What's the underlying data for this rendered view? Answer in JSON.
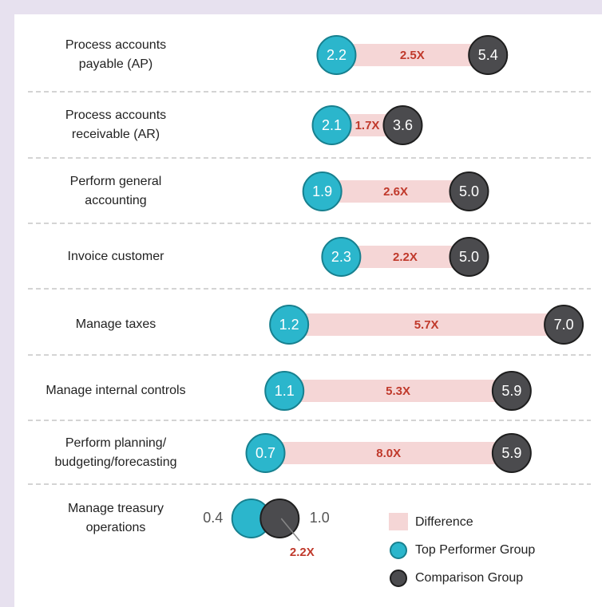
{
  "chart_data": {
    "type": "dumbbell",
    "categories": [
      [
        "Process accounts",
        "payable (AP)"
      ],
      [
        "Process accounts",
        "receivable (AR)"
      ],
      [
        "Perform general",
        "accounting"
      ],
      [
        "Invoice customer"
      ],
      [
        "Manage taxes"
      ],
      [
        "Manage internal controls"
      ],
      [
        "Perform planning/",
        "budgeting/forecasting"
      ],
      [
        "Manage treasury",
        "operations"
      ]
    ],
    "series": [
      {
        "name": "Top Performer Group",
        "color": "#2bb6cc",
        "stroke": "#17808f",
        "values": [
          2.2,
          2.1,
          1.9,
          2.3,
          1.2,
          1.1,
          0.7,
          0.4
        ],
        "value_labels": [
          "2.2",
          "2.1",
          "1.9",
          "2.3",
          "1.2",
          "1.1",
          "0.7",
          "0.4"
        ]
      },
      {
        "name": "Comparison Group",
        "color": "#4b4b4e",
        "stroke": "#1e1e1e",
        "values": [
          5.4,
          3.6,
          5.0,
          5.0,
          7.0,
          5.9,
          5.9,
          1.0
        ],
        "value_labels": [
          "5.4",
          "3.6",
          "5.0",
          "5.0",
          "7.0",
          "5.9",
          "5.9",
          "1.0"
        ]
      }
    ],
    "difference": {
      "name": "Difference",
      "color": "#f5d6d6",
      "values": [
        2.5,
        1.7,
        2.6,
        2.2,
        5.7,
        5.3,
        8.0,
        2.2
      ],
      "value_labels": [
        "2.5X",
        "1.7X",
        "2.6X",
        "2.2X",
        "5.7X",
        "5.3X",
        "8.0X",
        "2.2X"
      ]
    }
  }
}
